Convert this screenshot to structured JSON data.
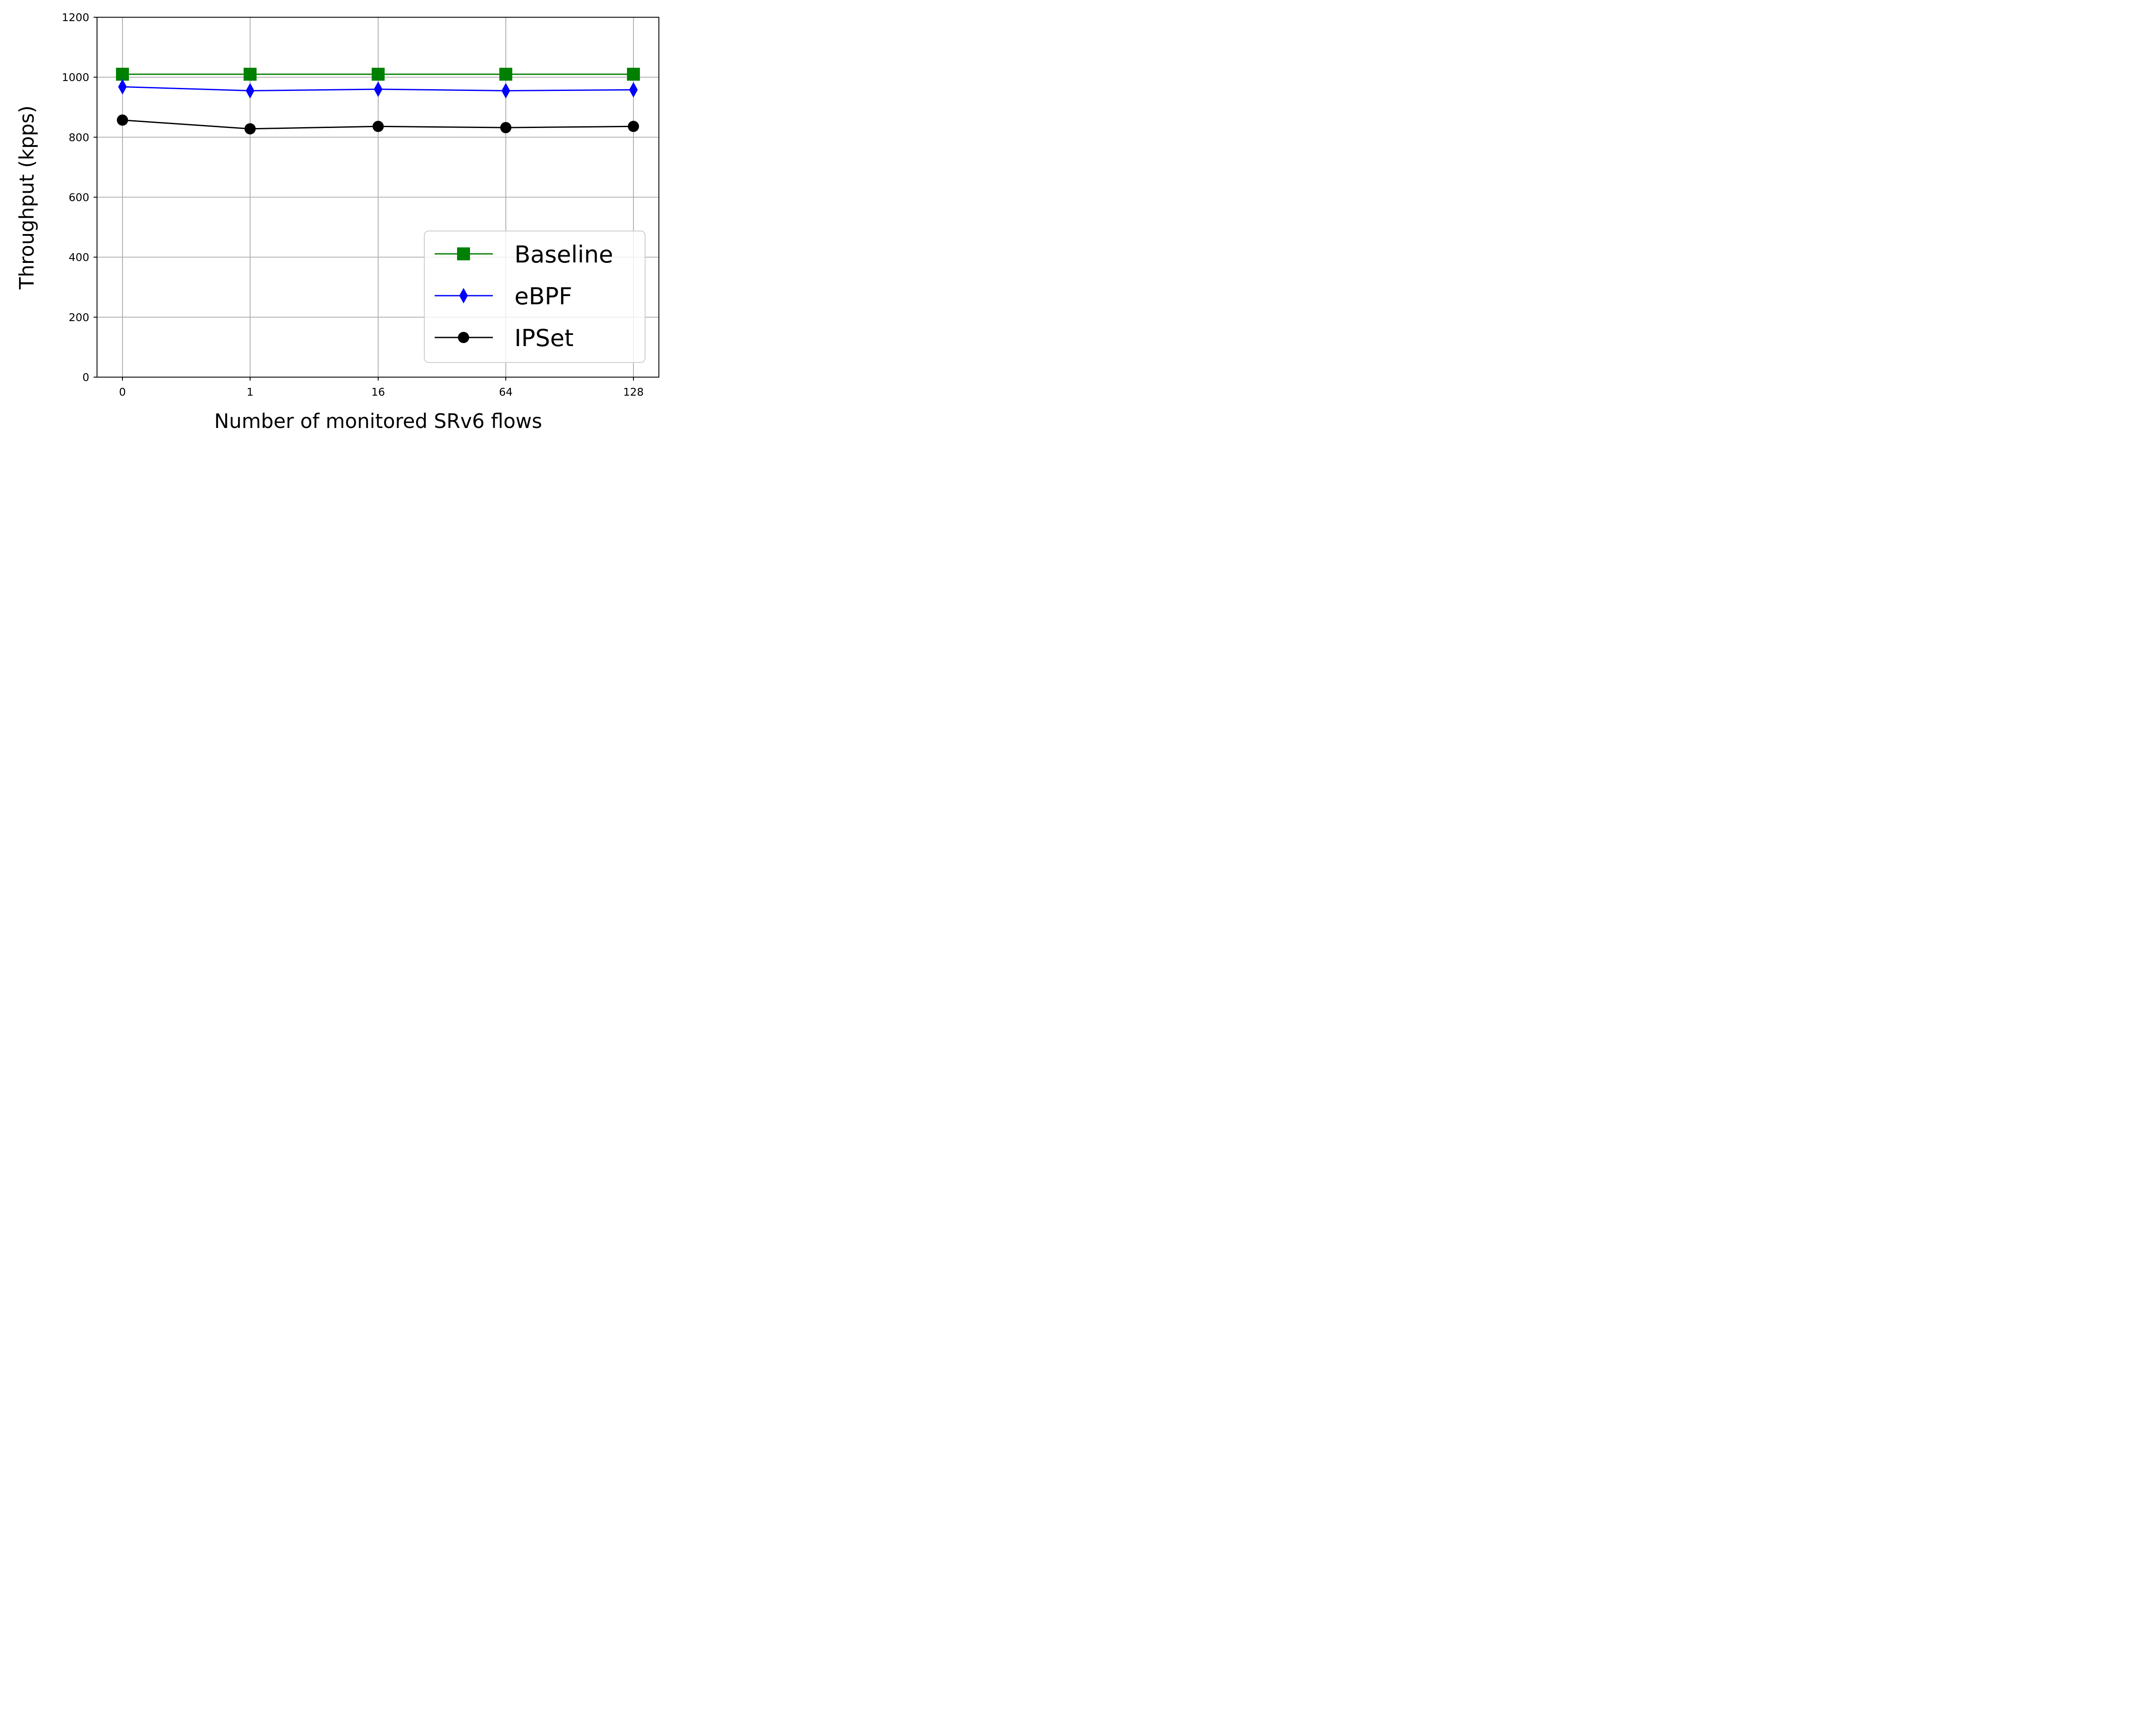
{
  "chart_data": {
    "type": "line",
    "title": "",
    "xlabel": "Number of monitored SRv6 flows",
    "ylabel": "Throughput (kpps)",
    "categories": [
      "0",
      "1",
      "16",
      "64",
      "128"
    ],
    "ylim": [
      0,
      1200
    ],
    "yticks": [
      0,
      200,
      400,
      600,
      800,
      1000,
      1200
    ],
    "grid": true,
    "legend_position": "bottom-right",
    "series": [
      {
        "name": "Baseline",
        "color": "#008000",
        "marker": "square",
        "values": [
          1010,
          1010,
          1010,
          1010,
          1010
        ]
      },
      {
        "name": "eBPF",
        "color": "#0000ff",
        "marker": "thin-diamond",
        "values": [
          968,
          955,
          960,
          955,
          958
        ]
      },
      {
        "name": "IPSet",
        "color": "#000000",
        "marker": "circle",
        "values": [
          857,
          828,
          836,
          832,
          836
        ]
      }
    ]
  }
}
